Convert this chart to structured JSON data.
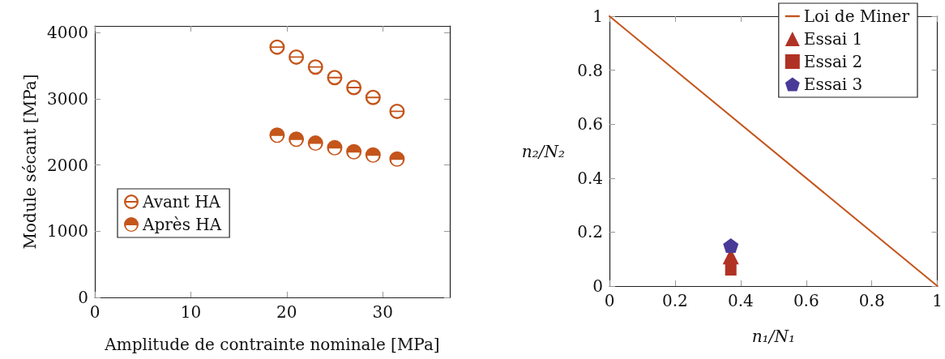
{
  "chart_data": [
    {
      "type": "scatter",
      "xlabel": "Amplitude de contrainte nominale [MPa]",
      "ylabel": "Module sécant [MPa]",
      "x": [
        19,
        21,
        23,
        25,
        27,
        29,
        31.5
      ],
      "xlim": [
        0,
        37
      ],
      "xticks": [
        0,
        10,
        20,
        30
      ],
      "ylim": [
        0,
        4100
      ],
      "yticks": [
        0,
        1000,
        2000,
        3000,
        4000
      ],
      "legend": "left",
      "grid": false,
      "series": [
        {
          "name": "Avant HA",
          "color": "#c4551b",
          "marker": "circle",
          "values": [
            3780,
            3630,
            3480,
            3320,
            3170,
            3020,
            2810
          ]
        },
        {
          "name": "Après HA",
          "color": "#c4551b",
          "marker": "circle",
          "values": [
            2450,
            2390,
            2330,
            2260,
            2200,
            2150,
            2090
          ]
        }
      ]
    },
    {
      "type": "scatter",
      "xlabel": "n₁/N₁",
      "ylabel": "n₂/N₂",
      "xlim": [
        0,
        1
      ],
      "xticks": [
        0,
        0.2,
        0.4,
        0.6,
        0.8,
        1
      ],
      "ylim": [
        0,
        1
      ],
      "yticks": [
        0,
        0.2,
        0.4,
        0.6,
        0.8,
        1
      ],
      "legend": "top right",
      "grid": false,
      "series": [
        {
          "name": "Loi de Miner",
          "type": "line",
          "color": "#c4551b",
          "marker": "none",
          "line_style": "solid",
          "x": [
            0,
            1
          ],
          "values": [
            1,
            0
          ]
        },
        {
          "name": "Essai 1",
          "color": "#b03224",
          "marker": "triangle",
          "x": [
            0.37
          ],
          "values": [
            0.11
          ]
        },
        {
          "name": "Essai 2",
          "color": "#b03224",
          "marker": "square",
          "x": [
            0.37
          ],
          "values": [
            0.06
          ]
        },
        {
          "name": "Essai 3",
          "color": "#4a3a98",
          "x": [
            0.37
          ],
          "values": [
            0.15
          ]
        }
      ]
    }
  ]
}
